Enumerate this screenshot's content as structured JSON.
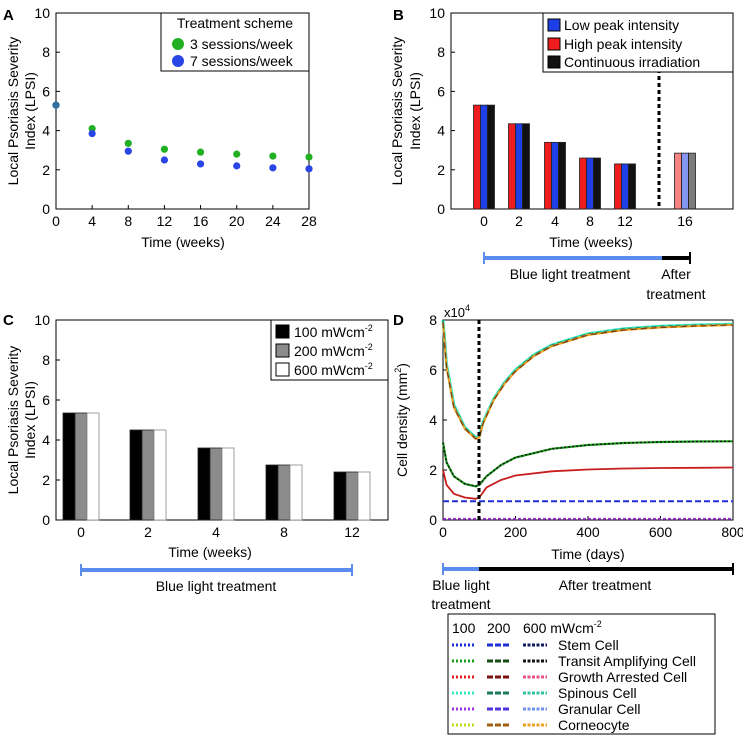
{
  "chart_data": [
    {
      "panel": "A",
      "type": "scatter",
      "xlabel": "Time (weeks)",
      "ylabel": [
        "Local Psoriasis  Severity",
        "Index (LPSI)"
      ],
      "xlim": [
        0,
        28
      ],
      "ylim": [
        0,
        10
      ],
      "xticks": [
        0,
        4,
        8,
        12,
        16,
        20,
        24,
        28
      ],
      "yticks": [
        0,
        2,
        4,
        6,
        8,
        10
      ],
      "legend_title": "Treatment scheme",
      "series": [
        {
          "name": "3 sessions/week",
          "color": "#22b022",
          "x": [
            0,
            4,
            8,
            12,
            16,
            20,
            24,
            28
          ],
          "y": [
            5.3,
            4.1,
            3.35,
            3.05,
            2.9,
            2.8,
            2.7,
            2.65
          ]
        },
        {
          "name": "7 sessions/week",
          "color": "#2a45e6",
          "x": [
            0,
            4,
            8,
            12,
            16,
            20,
            24,
            28
          ],
          "y": [
            5.3,
            3.85,
            2.95,
            2.5,
            2.3,
            2.2,
            2.1,
            2.05
          ]
        }
      ]
    },
    {
      "panel": "B",
      "type": "bar",
      "xlabel": "Time (weeks)",
      "ylabel": [
        "Local Psoriasis  Severity",
        "Index (LPSI)"
      ],
      "ylim": [
        0,
        10
      ],
      "yticks": [
        0,
        2,
        4,
        6,
        8,
        10
      ],
      "categories": [
        "0",
        "2",
        "4",
        "8",
        "12",
        "16"
      ],
      "series": [
        {
          "name": "Low peak intensity",
          "color": "#1f3fe6",
          "values": [
            5.3,
            4.35,
            3.4,
            2.6,
            2.3,
            2.85
          ]
        },
        {
          "name": "High peak intensity",
          "color": "#ee1c1c",
          "values": [
            5.3,
            4.35,
            3.4,
            2.6,
            2.3,
            2.85
          ]
        },
        {
          "name": "Continuous irradiation",
          "color": "#111111",
          "values": [
            5.3,
            4.35,
            3.4,
            2.6,
            2.3,
            2.85
          ]
        }
      ],
      "treatment_label": "Blue light treatment",
      "after_label": [
        "After",
        "treatment"
      ]
    },
    {
      "panel": "C",
      "type": "bar",
      "xlabel": "Time (weeks)",
      "ylabel": [
        "Local Psoriasis  Severity",
        "Index (LPSI)"
      ],
      "ylim": [
        0,
        10
      ],
      "yticks": [
        0,
        2,
        4,
        6,
        8,
        10
      ],
      "categories": [
        "0",
        "2",
        "4",
        "8",
        "12"
      ],
      "series": [
        {
          "name": "100 mWcm",
          "sup": "-2",
          "color": "#000000",
          "values": [
            5.35,
            4.5,
            3.6,
            2.75,
            2.4
          ]
        },
        {
          "name": "200 mWcm",
          "sup": "-2",
          "color": "#8c8c8c",
          "values": [
            5.35,
            4.5,
            3.6,
            2.75,
            2.4
          ]
        },
        {
          "name": "600 mWcm",
          "sup": "-2",
          "color": "#ffffff",
          "values": [
            5.35,
            4.5,
            3.6,
            2.75,
            2.4
          ]
        }
      ],
      "treatment_label": "Blue light treatment"
    },
    {
      "panel": "D",
      "type": "line",
      "xlabel": "Time (days)",
      "ylabel": "Cell density (mm",
      "ylabel_sup": "2",
      "ylabel_end": ")",
      "multiplier": "x10",
      "multiplier_sup": "4",
      "xlim": [
        0,
        800
      ],
      "ylim": [
        0,
        8
      ],
      "xticks": [
        0,
        200,
        400,
        600,
        800
      ],
      "yticks": [
        0,
        2,
        4,
        6,
        8
      ],
      "treatment_end_day": 100,
      "series": [
        {
          "name": "Stem Cell",
          "color": "#1e2fd6",
          "x": [
            0,
            100,
            200,
            400,
            600,
            800
          ],
          "y": [
            0.75,
            0.75,
            0.75,
            0.75,
            0.75,
            0.75
          ]
        },
        {
          "name": "Transit Amplifying Cell",
          "color": "#1a8c1a",
          "x": [
            0,
            10,
            30,
            60,
            90,
            100,
            120,
            160,
            200,
            300,
            400,
            500,
            600,
            700,
            800
          ],
          "y": [
            3.1,
            2.3,
            1.75,
            1.45,
            1.35,
            1.4,
            1.75,
            2.2,
            2.5,
            2.85,
            3.0,
            3.08,
            3.12,
            3.14,
            3.15
          ]
        },
        {
          "name": "Growth Arrested Cell",
          "color": "#d21e1e",
          "x": [
            0,
            10,
            30,
            60,
            90,
            100,
            120,
            160,
            200,
            300,
            400,
            500,
            600,
            700,
            800
          ],
          "y": [
            2.0,
            1.4,
            1.05,
            0.9,
            0.85,
            0.9,
            1.3,
            1.6,
            1.78,
            1.95,
            2.02,
            2.06,
            2.08,
            2.09,
            2.1
          ]
        },
        {
          "name": "Spinous Cell",
          "color": "#2ee0b0",
          "x": [
            0,
            10,
            30,
            60,
            90,
            100,
            110,
            140,
            170,
            200,
            250,
            300,
            400,
            500,
            600,
            700,
            800
          ],
          "y": [
            8.0,
            6.2,
            4.6,
            3.7,
            3.3,
            3.35,
            3.9,
            4.85,
            5.5,
            6.0,
            6.6,
            7.0,
            7.45,
            7.65,
            7.75,
            7.8,
            7.83
          ]
        },
        {
          "name": "Granular Cell",
          "color": "#9a30d6",
          "x": [
            0,
            800
          ],
          "y": [
            0.05,
            0.05
          ]
        },
        {
          "name": "Corneocyte",
          "color": "#e0a020",
          "x": [
            0,
            10,
            30,
            60,
            90,
            100,
            110,
            140,
            170,
            200,
            250,
            300,
            400,
            500,
            600,
            700,
            800
          ],
          "y": [
            7.9,
            6.1,
            4.5,
            3.65,
            3.25,
            3.3,
            3.85,
            4.8,
            5.45,
            5.95,
            6.55,
            6.95,
            7.4,
            7.6,
            7.7,
            7.76,
            7.8
          ]
        }
      ],
      "treatment_label": [
        "Blue light",
        "treatment"
      ],
      "after_label": "After treatment",
      "legend": {
        "header": [
          "100",
          "200",
          "600 mWcm"
        ],
        "header_sup": "-2",
        "rows": [
          {
            "label": "Stem Cell",
            "colors": [
              "#1e2fd6",
              "#1e2fd6",
              "#101a60"
            ]
          },
          {
            "label": "Transit Amplifying Cell",
            "colors": [
              "#1a9c1a",
              "#134d13",
              "#111111"
            ]
          },
          {
            "label": "Growth Arrested Cell",
            "colors": [
              "#e01e1e",
              "#7a1010",
              "#e8508a"
            ]
          },
          {
            "label": "Spinous Cell",
            "colors": [
              "#35e8c0",
              "#1a7a5a",
              "#30c0a0"
            ]
          },
          {
            "label": "Granular Cell",
            "colors": [
              "#a030e0",
              "#5030e0",
              "#7090f0"
            ]
          },
          {
            "label": "Corneocyte",
            "colors": [
              "#b8e020",
              "#a06010",
              "#f0a020"
            ]
          }
        ]
      }
    }
  ],
  "panel_labels": [
    "A",
    "B",
    "C",
    "D"
  ]
}
